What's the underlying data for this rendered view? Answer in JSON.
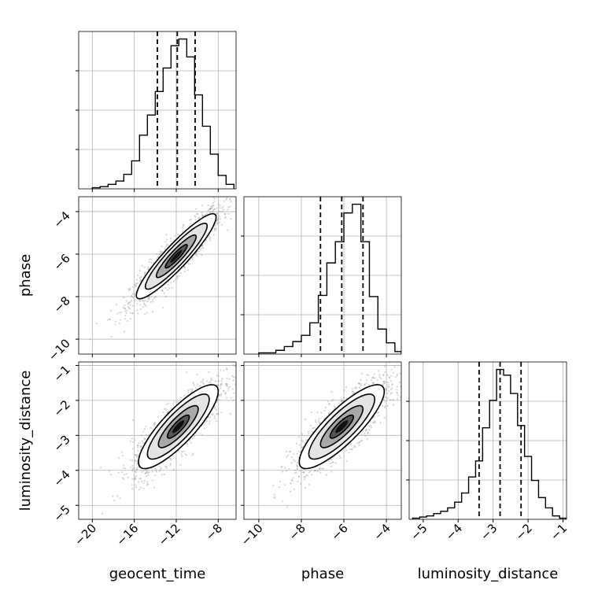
{
  "chart_data": {
    "type": "corner",
    "parameters": [
      "geocent_time",
      "phase",
      "luminosity_distance"
    ],
    "axis_labels": {
      "geocent_time": "geocent_time",
      "phase": "phase",
      "luminosity_distance": "luminosity_distance"
    },
    "ranges": {
      "geocent_time": [
        -21.3,
        -6.3
      ],
      "phase": [
        -10.7,
        -3.3
      ],
      "luminosity_distance": [
        -5.4,
        -0.9
      ]
    },
    "ticks": {
      "geocent_time": [
        -20,
        -16,
        -12,
        -8
      ],
      "phase": [
        -10,
        -8,
        -6,
        -4
      ],
      "luminosity_distance": [
        -5,
        -4,
        -3,
        -2,
        -1
      ]
    },
    "grid": true,
    "quantiles": {
      "geocent_time": [
        -13.8,
        -11.9,
        -10.2
      ],
      "phase": [
        -7.1,
        -6.1,
        -5.1
      ],
      "luminosity_distance": [
        -3.4,
        -2.8,
        -2.2
      ]
    },
    "histograms": {
      "geocent_time": {
        "edges": [
          -20,
          -19.25,
          -18.5,
          -17.75,
          -17,
          -16.25,
          -15.5,
          -14.75,
          -14,
          -13.25,
          -12.5,
          -11.75,
          -11,
          -10.25,
          -9.5,
          -8.75,
          -8,
          -7.25,
          -6.5
        ],
        "counts": [
          1,
          2,
          4,
          7,
          13,
          25,
          48,
          66,
          87,
          108,
          128,
          134,
          118,
          84,
          56,
          31,
          12,
          4
        ]
      },
      "phase": {
        "edges": [
          -10,
          -9.6,
          -9.2,
          -8.8,
          -8.4,
          -8,
          -7.6,
          -7.2,
          -6.8,
          -6.4,
          -6,
          -5.6,
          -5.2,
          -4.8,
          -4.4,
          -4,
          -3.6,
          -3.3
        ],
        "counts": [
          1,
          1,
          3,
          6,
          10,
          15,
          25,
          47,
          73,
          90,
          113,
          120,
          90,
          46,
          20,
          9,
          2
        ]
      },
      "luminosity_distance": {
        "edges": [
          -5.3,
          -5.1,
          -4.9,
          -4.7,
          -4.5,
          -4.3,
          -4.1,
          -3.9,
          -3.7,
          -3.5,
          -3.3,
          -3.1,
          -2.9,
          -2.7,
          -2.5,
          -2.3,
          -2.1,
          -1.9,
          -1.7,
          -1.5,
          -1.3,
          -1.1,
          -0.9
        ],
        "counts": [
          1,
          2,
          3,
          5,
          7,
          10,
          15,
          23,
          37,
          51,
          80,
          104,
          131,
          126,
          110,
          82,
          55,
          34,
          19,
          10,
          3,
          1
        ]
      }
    },
    "joint": [
      {
        "x": "geocent_time",
        "y": "phase",
        "center": [
          -12.0,
          -6.1
        ],
        "sigma_x": 1.9,
        "sigma_y": 1.0,
        "rho": 0.92,
        "scatter_extent_x": [
          -19.5,
          -6.8
        ]
      },
      {
        "x": "geocent_time",
        "y": "luminosity_distance",
        "center": [
          -11.8,
          -2.75
        ],
        "sigma_x": 1.9,
        "sigma_y": 0.6,
        "rho": 0.84,
        "scatter_extent_x": [
          -20,
          -7
        ]
      },
      {
        "x": "phase",
        "y": "luminosity_distance",
        "center": [
          -6.1,
          -2.75
        ],
        "sigma_x": 1.0,
        "sigma_y": 0.6,
        "rho": 0.84,
        "scatter_extent_x": [
          -10,
          -3.8
        ]
      }
    ]
  }
}
